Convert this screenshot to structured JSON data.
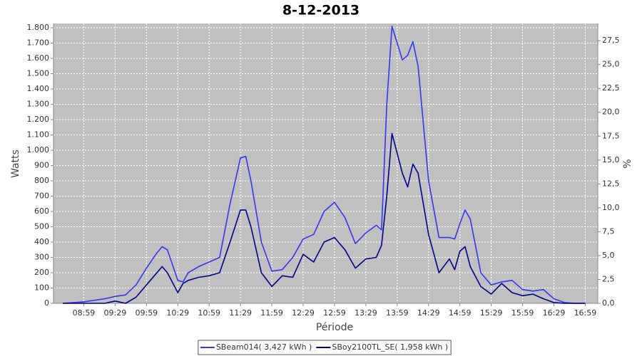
{
  "chart_data": {
    "type": "line",
    "title": "8-12-2013",
    "x_label": "Période",
    "y_label": "Watts",
    "y2_label": "%",
    "x": [
      "08:39",
      "08:59",
      "09:19",
      "09:29",
      "09:39",
      "09:49",
      "09:59",
      "10:09",
      "10:14",
      "10:19",
      "10:29",
      "10:34",
      "10:39",
      "10:49",
      "10:59",
      "11:09",
      "11:19",
      "11:29",
      "11:34",
      "11:39",
      "11:49",
      "11:59",
      "12:09",
      "12:19",
      "12:29",
      "12:39",
      "12:49",
      "12:59",
      "13:09",
      "13:19",
      "13:29",
      "13:39",
      "13:44",
      "13:49",
      "13:54",
      "13:59",
      "14:04",
      "14:09",
      "14:14",
      "14:19",
      "14:29",
      "14:39",
      "14:49",
      "14:54",
      "14:59",
      "15:04",
      "15:09",
      "15:19",
      "15:29",
      "15:39",
      "15:49",
      "15:59",
      "16:09",
      "16:19",
      "16:29",
      "16:39",
      "16:49",
      "16:59"
    ],
    "series": [
      {
        "name": "SBeam014( 3,427 kWh )",
        "color": "#3636f0",
        "values": [
          0,
          10,
          30,
          45,
          55,
          120,
          230,
          330,
          370,
          350,
          150,
          140,
          200,
          240,
          270,
          300,
          650,
          950,
          960,
          800,
          400,
          210,
          220,
          300,
          420,
          450,
          600,
          660,
          560,
          390,
          460,
          510,
          480,
          1300,
          1810,
          1700,
          1590,
          1620,
          1710,
          1550,
          800,
          430,
          430,
          420,
          520,
          610,
          550,
          200,
          120,
          140,
          150,
          90,
          80,
          90,
          30,
          5,
          0,
          0
        ]
      },
      {
        "name": "SBoy2100TL_SE( 1,958 kWh )",
        "color": "#00008b",
        "values": [
          0,
          0,
          0,
          15,
          0,
          40,
          120,
          200,
          240,
          200,
          70,
          130,
          150,
          170,
          180,
          200,
          400,
          610,
          610,
          500,
          200,
          110,
          180,
          170,
          320,
          270,
          400,
          430,
          350,
          230,
          290,
          300,
          380,
          700,
          1110,
          980,
          850,
          760,
          910,
          850,
          450,
          200,
          290,
          220,
          340,
          370,
          240,
          110,
          60,
          130,
          70,
          50,
          60,
          30,
          5,
          0,
          0,
          0
        ]
      }
    ],
    "xlim": [
      "08:30",
      "17:11"
    ],
    "xticks": [
      "08:59",
      "09:29",
      "09:59",
      "10:29",
      "10:59",
      "11:29",
      "11:59",
      "12:29",
      "12:59",
      "13:29",
      "13:59",
      "14:29",
      "14:59",
      "15:29",
      "15:59",
      "16:29",
      "16:59"
    ],
    "ylim": [
      0,
      1828
    ],
    "yticks": [
      0,
      100,
      200,
      300,
      400,
      500,
      600,
      700,
      800,
      900,
      {
        "value": 1000,
        "label": "1.000"
      },
      {
        "value": 1100,
        "label": "1.100"
      },
      {
        "value": 1200,
        "label": "1.200"
      },
      {
        "value": 1300,
        "label": "1.300"
      },
      {
        "value": 1400,
        "label": "1.400"
      },
      {
        "value": 1500,
        "label": "1.500"
      },
      {
        "value": 1600,
        "label": "1.600"
      },
      {
        "value": 1700,
        "label": "1.700"
      },
      {
        "value": 1800,
        "label": "1.800"
      }
    ],
    "y2lim": [
      0,
      29.3
    ],
    "y2ticks": [
      {
        "value": 0,
        "label": "0,0"
      },
      {
        "value": 2.5,
        "label": "2,5"
      },
      {
        "value": 5,
        "label": "5,0"
      },
      {
        "value": 7.5,
        "label": "7,5"
      },
      {
        "value": 10,
        "label": "10,0"
      },
      {
        "value": 12.5,
        "label": "12,5"
      },
      {
        "value": 15,
        "label": "15,0"
      },
      {
        "value": 17.5,
        "label": "17,5"
      },
      {
        "value": 20,
        "label": "20,0"
      },
      {
        "value": 22.5,
        "label": "22,5"
      },
      {
        "value": 25,
        "label": "25,0"
      },
      {
        "value": 27.5,
        "label": "27,5"
      }
    ],
    "grid": true,
    "legend": "bottom",
    "plot_background": "#c0c0c0"
  }
}
